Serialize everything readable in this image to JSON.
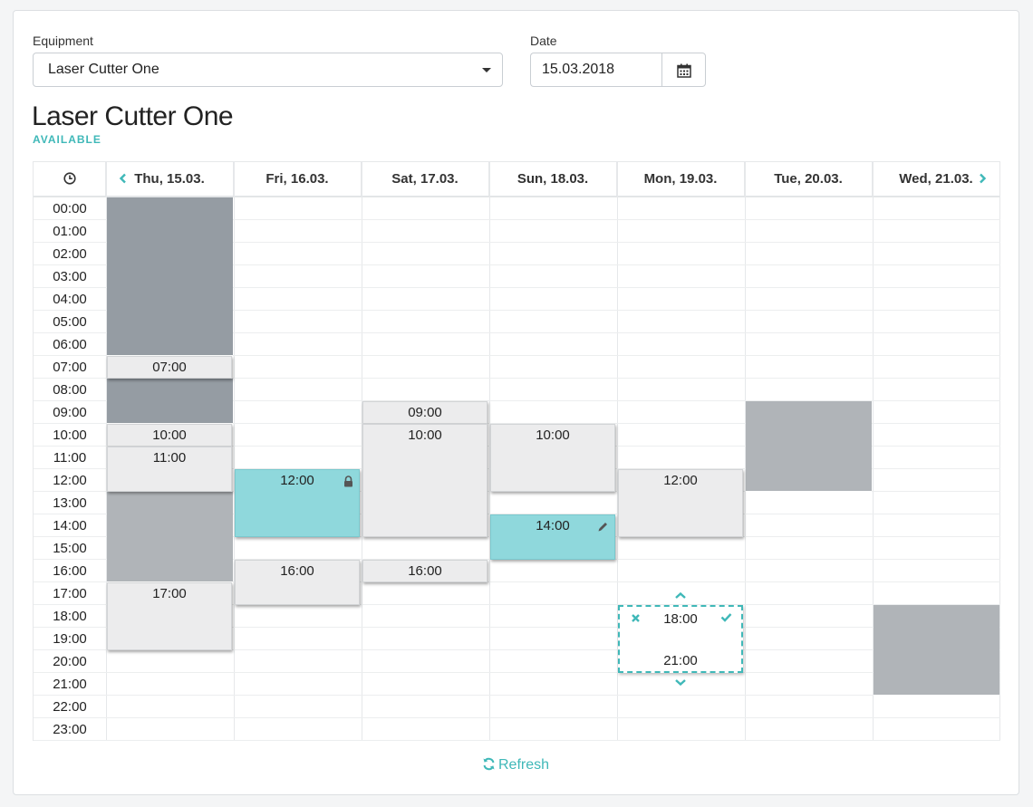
{
  "form": {
    "equipment_label": "Equipment",
    "equipment_value": "Laser Cutter One",
    "date_label": "Date",
    "date_value": "15.03.2018"
  },
  "heading": {
    "title": "Laser Cutter One",
    "status": "AVAILABLE"
  },
  "calendar": {
    "clock_icon": "clock-icon",
    "prev_icon": "chevron-left-icon",
    "next_icon": "chevron-right-icon",
    "days": [
      "Thu, 15.03.",
      "Fri, 16.03.",
      "Sat, 17.03.",
      "Sun, 18.03.",
      "Mon, 19.03.",
      "Tue, 20.03.",
      "Wed, 21.03."
    ],
    "hours": [
      "00:00",
      "01:00",
      "02:00",
      "03:00",
      "04:00",
      "05:00",
      "06:00",
      "07:00",
      "08:00",
      "09:00",
      "10:00",
      "11:00",
      "12:00",
      "13:00",
      "14:00",
      "15:00",
      "16:00",
      "17:00",
      "18:00",
      "19:00",
      "20:00",
      "21:00",
      "22:00",
      "23:00"
    ],
    "bookings": [
      {
        "label": "07:00"
      },
      {
        "label": "10:00"
      },
      {
        "label": "11:00"
      },
      {
        "label": "17:00"
      },
      {
        "label": "12:00",
        "icon": "lock-icon"
      },
      {
        "label": "16:00"
      },
      {
        "label": "09:00"
      },
      {
        "label": "10:00"
      },
      {
        "label": "16:00"
      },
      {
        "label": "10:00"
      },
      {
        "label": "14:00",
        "icon": "pencil-icon"
      },
      {
        "label": "12:00"
      }
    ],
    "selection": {
      "start": "18:00",
      "end": "21:00",
      "cancel_icon": "cross-icon",
      "confirm_icon": "check-icon",
      "expand_up_icon": "chevron-up-icon",
      "expand_down_icon": "chevron-down-icon"
    }
  },
  "footer": {
    "refresh_label": "Refresh",
    "refresh_icon": "refresh-icon"
  },
  "colors": {
    "accent": "#3fb8b8",
    "booked_teal": "#8fd8dc",
    "blocked_dark": "#959ca3",
    "blocked_mid": "#b0b4b8",
    "booking_gray": "#ececed"
  }
}
